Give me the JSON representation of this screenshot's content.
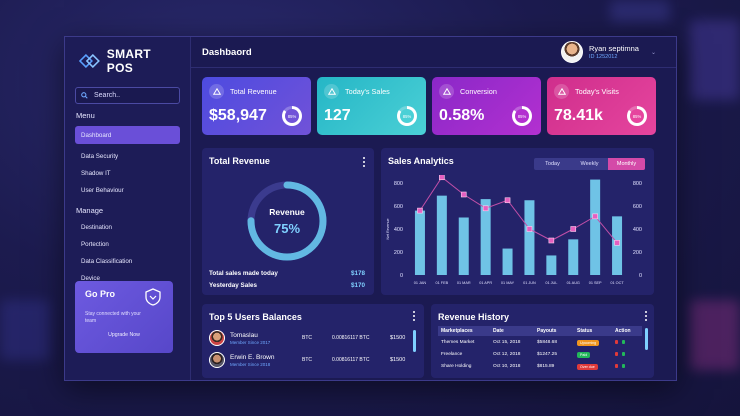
{
  "app": {
    "brand": "SMART POS",
    "page_title": "Dashbaord",
    "search_placeholder": "Search..",
    "user": {
      "name": "Ryan septimna",
      "id": "ID 1252012"
    }
  },
  "sidebar": {
    "menu_label": "Menu",
    "menu_items": [
      "Dashboard",
      "Data Security",
      "Shadow IT",
      "User Behaviour"
    ],
    "manage_label": "Manage",
    "manage_items": [
      "Destination",
      "Portection",
      "Data Classification",
      "Device"
    ],
    "gopro": {
      "title": "Go Pro",
      "subtitle": "Stay connected with your team",
      "button": "Upgrade Now"
    }
  },
  "stats": [
    {
      "label": "Total Revenue",
      "value": "$58,947",
      "percent": "85%",
      "fill": 0.85,
      "gradient": [
        "#4d4be0",
        "#7152d8"
      ],
      "ring_color": "#ffffff"
    },
    {
      "label": "Today's Sales",
      "value": "127",
      "percent": "85%",
      "fill": 0.85,
      "gradient": [
        "#25b6c6",
        "#4bd0d6"
      ],
      "ring_color": "#ffffff"
    },
    {
      "label": "Conversion",
      "value": "0.58%",
      "percent": "85%",
      "fill": 0.85,
      "gradient": [
        "#8a28c8",
        "#b330d0"
      ],
      "ring_color": "#ffffff"
    },
    {
      "label": "Today's Visits",
      "value": "78.41k",
      "percent": "85%",
      "fill": 0.85,
      "gradient": [
        "#cf2e8c",
        "#e6459e"
      ],
      "ring_color": "#ffffff"
    }
  ],
  "total_revenue_panel": {
    "title": "Total Revenue",
    "donut_label": "Revenue",
    "donut_value": "75%",
    "donut_fill": 0.75,
    "rows": [
      {
        "label": "Total sales made today",
        "value": "$178"
      },
      {
        "label": "Yesterday Sales",
        "value": "$170"
      }
    ]
  },
  "sales_analytics": {
    "title": "Sales Analytics",
    "tabs": [
      "Today",
      "Weekly",
      "Monthly"
    ],
    "active_tab": "Monthly",
    "chart_data": {
      "type": "bar",
      "title": "Sales Analytics",
      "ylabel": "Net Revenue",
      "categories": [
        "01 JAN",
        "01 FEB",
        "01 MAR",
        "01 APR",
        "01 MAY",
        "01 JUN",
        "01 JUL",
        "01 AUG",
        "01 SEP",
        "01 OCT"
      ],
      "ylim": [
        0,
        800
      ],
      "yticks": [
        0,
        200,
        400,
        600,
        800
      ],
      "series": [
        {
          "type": "bar",
          "values": [
            560,
            690,
            500,
            660,
            230,
            650,
            170,
            310,
            830,
            510
          ]
        },
        {
          "type": "line",
          "values": [
            560,
            850,
            700,
            580,
            650,
            400,
            300,
            400,
            510,
            280
          ]
        }
      ],
      "bar_color": "#6fc3e6",
      "line_color": "#c24fa8"
    }
  },
  "balances": {
    "title": "Top 5 Users Balances",
    "rows": [
      {
        "name": "Tomaslau",
        "since": "Member Since 2017",
        "currency": "BTC",
        "amount": "0.00816117 BTC",
        "usd": "$1500"
      },
      {
        "name": "Erwin E. Brown",
        "since": "Member Since 2018",
        "currency": "BTC",
        "amount": "0.00816117 BTC",
        "usd": "$1500"
      }
    ]
  },
  "revenue_history": {
    "title": "Revenue History",
    "headers": [
      "Marketplaces",
      "Date",
      "Payouts",
      "Status",
      "Action"
    ],
    "rows": [
      {
        "market": "Themes Market",
        "date": "Oct 15, 2018",
        "payout": "$5848.68",
        "status": "Upcoming",
        "status_color": "#f0951f"
      },
      {
        "market": "Freelance",
        "date": "Oct 12, 2018",
        "payout": "$1247.25",
        "status": "Paid",
        "status_color": "#22b85a"
      },
      {
        "market": "Share Holding",
        "date": "Oct 10, 2018",
        "payout": "$815.89",
        "status": "Over due",
        "status_color": "#e03a3a"
      }
    ]
  }
}
